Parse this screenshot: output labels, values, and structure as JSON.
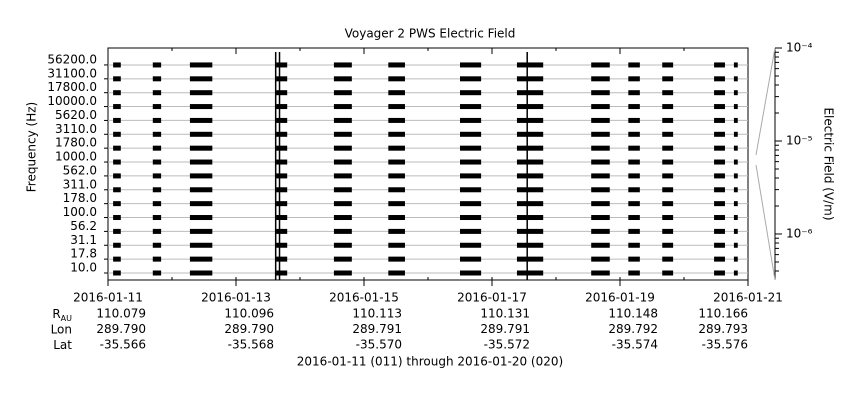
{
  "chart_data": {
    "type": "spectrum-blocks",
    "title": "Voyager 2 PWS Electric Field",
    "ylabel": "Frequency (Hz)",
    "y2label": "Electric Field (V/m)",
    "categories": [
      "10.0",
      "17.8",
      "31.1",
      "56.2",
      "100.0",
      "178.0",
      "311.0",
      "562.0",
      "1000.0",
      "1780.0",
      "3110.0",
      "5620.0",
      "10000.0",
      "17800.0",
      "31100.0",
      "56200.0"
    ],
    "xlim": [
      0,
      10
    ],
    "xticks": [
      {
        "value": 0,
        "label": "2016-01-11"
      },
      {
        "value": 2,
        "label": "2016-01-13"
      },
      {
        "value": 4,
        "label": "2016-01-15"
      },
      {
        "value": 6,
        "label": "2016-01-17"
      },
      {
        "value": 8,
        "label": "2016-01-19"
      },
      {
        "value": 10,
        "label": "2016-01-21"
      }
    ],
    "intervals": [
      [
        0.08,
        0.2
      ],
      [
        0.7,
        0.83
      ],
      [
        1.28,
        1.63
      ],
      [
        2.63,
        2.8
      ],
      [
        3.53,
        3.81
      ],
      [
        4.38,
        4.64
      ],
      [
        5.5,
        5.83
      ],
      [
        6.39,
        6.8
      ],
      [
        7.55,
        7.84
      ],
      [
        8.13,
        8.31
      ],
      [
        8.66,
        8.83
      ],
      [
        9.47,
        9.64
      ],
      [
        9.78,
        9.84
      ]
    ],
    "spikes": [
      2.62,
      2.68,
      6.55
    ],
    "color": "#000000",
    "y2log": true,
    "y2lim": [
      3.2e-07,
      0.0001
    ],
    "y2ticks": [
      {
        "value": 0.0001,
        "label": "10⁻⁴"
      },
      {
        "value": 1e-05,
        "label": "10⁻⁵"
      },
      {
        "value": 1e-06,
        "label": "10⁻⁶"
      }
    ],
    "ephemeris": [
      {
        "label": "R",
        "sub": "AU",
        "values": [
          "110.079",
          "110.096",
          "110.113",
          "110.131",
          "110.148",
          "110.166"
        ]
      },
      {
        "label": "Lon",
        "values": [
          "289.790",
          "289.790",
          "289.791",
          "289.791",
          "289.792",
          "289.793"
        ]
      },
      {
        "label": "Lat",
        "values": [
          "-35.566",
          "-35.568",
          "-35.570",
          "-35.572",
          "-35.574",
          "-35.576"
        ]
      }
    ],
    "caption": "2016-01-11 (011) through 2016-01-20 (020)"
  }
}
